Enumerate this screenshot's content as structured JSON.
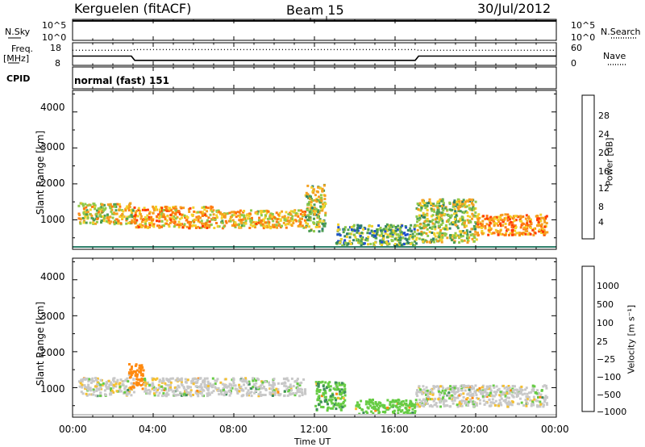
{
  "header": {
    "station": "Kerguelen (fitACF)",
    "beam": "Beam 15",
    "date": "30/Jul/2012"
  },
  "top_panels": {
    "nsky_label": "N.Sky",
    "nsky_ticks": [
      "10^5",
      "10^0"
    ],
    "nsearch_label": "N.Search",
    "nsearch_ticks": [
      "10^5",
      "10^0"
    ],
    "freq_label": "Freq.",
    "freq_unit": "[MHz]",
    "freq_ticks": [
      "18",
      "8"
    ],
    "nave_label": "Nave",
    "nave_ticks": [
      "60",
      "0"
    ],
    "cpid_label": "CPID",
    "cpid_value": "normal (fast) 151"
  },
  "panels": {
    "ylabel": "Slant Range [km]",
    "yticks": [
      "4000",
      "3000",
      "2000",
      "1000"
    ],
    "xlabel": "Time UT",
    "xticks": [
      "00:00",
      "04:00",
      "08:00",
      "12:00",
      "16:00",
      "20:00",
      "00:00"
    ]
  },
  "power_scale": {
    "label": "Power [dB]",
    "ticks": [
      "28",
      "24",
      "20",
      "16",
      "12",
      "8",
      "4"
    ],
    "colors": [
      "#0a14ff",
      "#1f4fd0",
      "#2f7f6a",
      "#4d9e52",
      "#8fc94a",
      "#f3d12a",
      "#f5a020",
      "#ff7a10",
      "#ff3a00"
    ]
  },
  "velocity_scale": {
    "label": "Velocity [m s⁻¹]",
    "ticks": [
      "1000",
      "500",
      "100",
      "25",
      "−25",
      "−100",
      "−500",
      "−1000"
    ],
    "colors": [
      "#2a3fd8",
      "#3d7f9a",
      "#3f8f5a",
      "#66cc44",
      "#c8c8c8",
      "#f5c030",
      "#ff8a10",
      "#ff4a00",
      "#e80000"
    ]
  },
  "chart_data": [
    {
      "type": "line",
      "title": "N.Sky / N.Search",
      "x": [
        "00:00",
        "04:00",
        "08:00",
        "12:00",
        "16:00",
        "20:00",
        "00:00"
      ],
      "series": [
        {
          "name": "N.Sky",
          "values": [
            100000,
            100000,
            100000,
            100000,
            100000,
            100000,
            100000
          ]
        }
      ],
      "yscale": "log",
      "ylim": [
        1,
        100000
      ]
    },
    {
      "type": "line",
      "title": "Freq. / Nave",
      "x": [
        "00:00",
        "02:55",
        "03:05",
        "17:00",
        "17:10",
        "24:00"
      ],
      "series": [
        {
          "name": "Freq.",
          "values": [
            12.1,
            12.1,
            10.2,
            10.2,
            12.1,
            12.1
          ]
        },
        {
          "name": "Nave",
          "values": [
            40,
            40,
            42,
            42,
            40,
            40
          ]
        }
      ],
      "ylim": [
        8,
        18
      ]
    },
    {
      "type": "heatmap",
      "title": "Power [dB]",
      "x_range": [
        "00:00",
        "24:00"
      ],
      "ylim": [
        180,
        4600
      ],
      "scale_range": [
        0,
        30
      ],
      "bands": [
        {
          "time_start": "00:15",
          "time_end": "03:00",
          "range_km": [
            900,
            1500
          ],
          "power_db": 18
        },
        {
          "time_start": "03:00",
          "time_end": "07:00",
          "range_km": [
            800,
            1400
          ],
          "power_db": 22
        },
        {
          "time_start": "07:00",
          "time_end": "11:30",
          "range_km": [
            800,
            1300
          ],
          "power_db": 20
        },
        {
          "time_start": "11:30",
          "time_end": "12:30",
          "range_km": [
            700,
            2000
          ],
          "power_db": 16
        },
        {
          "time_start": "13:00",
          "time_end": "17:00",
          "range_km": [
            300,
            900
          ],
          "power_db": 12
        },
        {
          "time_start": "17:00",
          "time_end": "20:00",
          "range_km": [
            400,
            1600
          ],
          "power_db": 16
        },
        {
          "time_start": "20:00",
          "time_end": "23:30",
          "range_km": [
            600,
            1200
          ],
          "power_db": 24
        }
      ]
    },
    {
      "type": "heatmap",
      "title": "Velocity [m s⁻¹]",
      "x_range": [
        "00:00",
        "24:00"
      ],
      "ylim": [
        180,
        4600
      ],
      "scale_range": [
        -1000,
        1000
      ],
      "bands": [
        {
          "time_start": "00:15",
          "time_end": "03:00",
          "range_km": [
            800,
            1300
          ],
          "velocity": 0
        },
        {
          "time_start": "02:45",
          "time_end": "03:30",
          "range_km": [
            1000,
            1700
          ],
          "velocity": -300
        },
        {
          "time_start": "03:30",
          "time_end": "11:30",
          "range_km": [
            800,
            1300
          ],
          "velocity": 0
        },
        {
          "time_start": "12:00",
          "time_end": "13:30",
          "range_km": [
            400,
            1200
          ],
          "velocity": 80
        },
        {
          "time_start": "14:00",
          "time_end": "17:00",
          "range_km": [
            300,
            700
          ],
          "velocity": 60
        },
        {
          "time_start": "17:00",
          "time_end": "23:30",
          "range_km": [
            500,
            1100
          ],
          "velocity": 0
        }
      ]
    }
  ]
}
